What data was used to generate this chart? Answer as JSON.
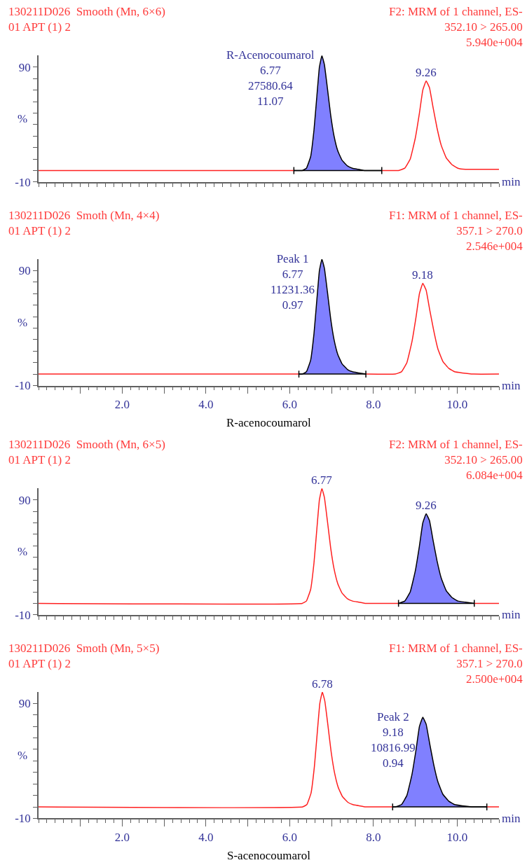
{
  "chart_data": [
    {
      "type": "line",
      "title": "130211D026  Smooth (Mn, 6×6)\n01 APT (1) 2",
      "subtitle": "F2: MRM of 1 channel, ES-\n352.10 > 265.00\n5.940e+004",
      "xlabel": "min",
      "ylabel": "%",
      "tick_labels": "y",
      "xlim": [
        0,
        11
      ],
      "ylim": [
        -10,
        100
      ],
      "xticks": [
        {
          "value": 1,
          "label": null
        },
        {
          "value": 2,
          "label": null
        },
        {
          "value": 3,
          "label": null
        },
        {
          "value": 4,
          "label": null
        },
        {
          "value": 5,
          "label": null
        },
        {
          "value": 6,
          "label": null
        },
        {
          "value": 7,
          "label": null
        },
        {
          "value": 8,
          "label": null
        },
        {
          "value": 9,
          "label": null
        },
        {
          "value": 10,
          "label": null
        }
      ],
      "yticks": [
        -10,
        {
          "value": 0,
          "label": null
        },
        {
          "value": 10,
          "label": null
        },
        {
          "value": 20,
          "label": null
        },
        {
          "value": 30,
          "label": null
        },
        {
          "value": 40,
          "label": null
        },
        {
          "value": 50,
          "label": null
        },
        {
          "value": 60,
          "label": null
        },
        {
          "value": 70,
          "label": null
        },
        {
          "value": 80,
          "label": null
        },
        90
      ],
      "series": [
        {
          "color": "#ff2020",
          "x": [
            0,
            6.1,
            7.0,
            8.2,
            8.6,
            8.75,
            8.88,
            9.0,
            9.1,
            9.18,
            9.26,
            9.34,
            9.42,
            9.52,
            9.62,
            9.74,
            9.88,
            10.02,
            10.2,
            10.4,
            11.0
          ],
          "values": [
            0,
            0,
            null,
            0,
            0,
            2,
            10,
            28,
            50,
            70,
            78,
            72,
            56,
            37,
            22,
            11,
            5,
            2,
            1,
            1,
            1
          ]
        },
        {
          "type": "area",
          "color": "#8080ff",
          "x": [
            6.1,
            6.3,
            6.4,
            6.5,
            6.58,
            6.65,
            6.71,
            6.77,
            6.83,
            6.9,
            6.98,
            7.06,
            7.15,
            7.25,
            7.38,
            7.5,
            7.65,
            7.8,
            8.2
          ],
          "values": [
            0,
            0,
            2,
            12,
            35,
            65,
            90,
            100,
            92,
            72,
            48,
            30,
            17,
            9,
            4,
            2,
            1,
            0,
            0
          ]
        }
      ],
      "annotations": [
        {
          "text": "R-Acenocoumarol\n6.77\n27580.64\n11.07",
          "x": 6.77,
          "y": 100
        },
        {
          "text": "9.26",
          "x": 9.26,
          "y": 78
        }
      ]
    },
    {
      "type": "line",
      "title": "130211D026  Smoth (Mn, 4×4)\n01 APT (1) 2",
      "subtitle": "F1: MRM of 1 channel, ES-\n357.1 > 270.0\n2.546e+004",
      "xlabel": "min",
      "ylabel": "%",
      "xlim": [
        0,
        11
      ],
      "ylim": [
        -10,
        100
      ],
      "xticks": [
        {
          "value": 1,
          "label": null
        },
        {
          "value": 2,
          "label": "2.0"
        },
        {
          "value": 3,
          "label": null
        },
        {
          "value": 4,
          "label": "4.0"
        },
        {
          "value": 5,
          "label": null
        },
        {
          "value": 6,
          "label": "6.0"
        },
        {
          "value": 7,
          "label": null
        },
        {
          "value": 8,
          "label": "8.0"
        },
        {
          "value": 9,
          "label": null
        },
        {
          "value": 10,
          "label": "10.0"
        }
      ],
      "yticks": [
        -10,
        {
          "value": 0,
          "label": null
        },
        {
          "value": 10,
          "label": null
        },
        {
          "value": 20,
          "label": null
        },
        {
          "value": 30,
          "label": null
        },
        {
          "value": 40,
          "label": null
        },
        {
          "value": 50,
          "label": null
        },
        {
          "value": 60,
          "label": null
        },
        {
          "value": 70,
          "label": null
        },
        {
          "value": 80,
          "label": null
        },
        90
      ],
      "series": [
        {
          "color": "#ff2020",
          "x": [
            0,
            6.22,
            7.0,
            7.82,
            8.52,
            8.67,
            8.8,
            8.92,
            9.02,
            9.1,
            9.18,
            9.26,
            9.34,
            9.44,
            9.54,
            9.66,
            9.8,
            9.94,
            10.12,
            10.4,
            11.0
          ],
          "values": [
            0,
            0,
            null,
            0,
            0,
            2,
            10,
            28,
            50,
            70,
            79,
            73,
            57,
            38,
            22,
            11,
            5,
            2,
            1,
            0,
            0
          ]
        },
        {
          "type": "area",
          "color": "#8080ff",
          "x": [
            6.22,
            6.3,
            6.4,
            6.5,
            6.58,
            6.65,
            6.71,
            6.77,
            6.83,
            6.9,
            6.98,
            7.06,
            7.15,
            7.25,
            7.38,
            7.5,
            7.65,
            7.82
          ],
          "values": [
            0,
            0,
            2,
            12,
            35,
            65,
            90,
            100,
            92,
            72,
            48,
            30,
            17,
            9,
            4,
            2,
            1,
            0
          ]
        }
      ],
      "annotations": [
        {
          "text": "Peak 1\n6.77\n11231.36\n0.97",
          "x": 6.77,
          "y": 100
        },
        {
          "text": "9.18",
          "x": 9.18,
          "y": 79
        },
        "R-acenocoumarol"
      ]
    },
    {
      "type": "line",
      "title": "130211D026  Smooth (Mn, 6×5)\n01 APT (1) 2",
      "subtitle": "F2: MRM of 1 channel, ES-\n352.10 > 265.00\n6.084e+004",
      "xlabel": "min",
      "ylabel": "%",
      "tick_labels": "y",
      "xlim": [
        0,
        11
      ],
      "ylim": [
        -10,
        100
      ],
      "xticks": [
        {
          "value": 1,
          "label": null
        },
        {
          "value": 2,
          "label": null
        },
        {
          "value": 3,
          "label": null
        },
        {
          "value": 4,
          "label": null
        },
        {
          "value": 5,
          "label": null
        },
        {
          "value": 6,
          "label": null
        },
        {
          "value": 7,
          "label": null
        },
        {
          "value": 8,
          "label": null
        },
        {
          "value": 9,
          "label": null
        },
        {
          "value": 10,
          "label": null
        }
      ],
      "yticks": [
        -10,
        {
          "value": 0,
          "label": null
        },
        {
          "value": 10,
          "label": null
        },
        {
          "value": 20,
          "label": null
        },
        {
          "value": 30,
          "label": null
        },
        {
          "value": 40,
          "label": null
        },
        {
          "value": 50,
          "label": null
        },
        {
          "value": 60,
          "label": null
        },
        {
          "value": 70,
          "label": null
        },
        {
          "value": 80,
          "label": null
        },
        90
      ],
      "series": [
        {
          "color": "#ff2020",
          "x": [
            0,
            6.3,
            6.4,
            6.5,
            6.58,
            6.65,
            6.71,
            6.77,
            6.83,
            6.9,
            6.98,
            7.06,
            7.15,
            7.25,
            7.38,
            7.5,
            7.65,
            7.8,
            8.2,
            8.6,
            9.5,
            10.41,
            11.0
          ],
          "values": [
            0,
            0,
            2,
            12,
            35,
            65,
            90,
            100,
            92,
            72,
            48,
            30,
            17,
            9,
            4,
            2,
            1,
            0,
            0,
            0,
            null,
            0,
            0
          ]
        },
        {
          "type": "area",
          "color": "#8080ff",
          "x": [
            8.6,
            8.75,
            8.88,
            9.0,
            9.1,
            9.18,
            9.26,
            9.34,
            9.42,
            9.52,
            9.62,
            9.74,
            9.88,
            10.02,
            10.2,
            10.41
          ],
          "values": [
            0,
            2,
            10,
            28,
            50,
            70,
            78,
            72,
            56,
            37,
            22,
            11,
            5,
            2,
            1,
            0
          ]
        }
      ],
      "annotations": [
        {
          "text": "6.77",
          "x": 6.77,
          "y": 100
        },
        {
          "text": "9.26",
          "x": 9.26,
          "y": 78
        }
      ]
    },
    {
      "type": "line",
      "title": "130211D026  Smoth (Mn, 5×5)\n01 APT (1) 2",
      "subtitle": "F1: MRM of 1 channel, ES-\n357.1 > 270.0\n2.500e+004",
      "xlabel": "min",
      "ylabel": "%",
      "xlim": [
        0,
        11
      ],
      "ylim": [
        -10,
        100
      ],
      "xticks": [
        {
          "value": 1,
          "label": null
        },
        {
          "value": 2,
          "label": "2.0"
        },
        {
          "value": 3,
          "label": null
        },
        {
          "value": 4,
          "label": "4.0"
        },
        {
          "value": 5,
          "label": null
        },
        {
          "value": 6,
          "label": "6.0"
        },
        {
          "value": 7,
          "label": null
        },
        {
          "value": 8,
          "label": "8.0"
        },
        {
          "value": 9,
          "label": null
        },
        {
          "value": 10,
          "label": "10.0"
        }
      ],
      "yticks": [
        -10,
        {
          "value": 0,
          "label": null
        },
        {
          "value": 10,
          "label": null
        },
        {
          "value": 20,
          "label": null
        },
        {
          "value": 30,
          "label": null
        },
        {
          "value": 40,
          "label": null
        },
        {
          "value": 50,
          "label": null
        },
        {
          "value": 60,
          "label": null
        },
        {
          "value": 70,
          "label": null
        },
        {
          "value": 80,
          "label": null
        },
        90
      ],
      "series": [
        {
          "color": "#ff2020",
          "x": [
            0,
            6.31,
            6.41,
            6.51,
            6.59,
            6.66,
            6.72,
            6.78,
            6.84,
            6.91,
            6.99,
            7.07,
            7.16,
            7.26,
            7.39,
            7.51,
            7.66,
            7.81,
            8.2,
            8.46,
            9.5,
            10.71,
            11.0
          ],
          "values": [
            0,
            0,
            2,
            12,
            35,
            65,
            90,
            100,
            92,
            72,
            48,
            30,
            17,
            9,
            4,
            2,
            1,
            0,
            0,
            0,
            null,
            0,
            0
          ]
        },
        {
          "type": "area",
          "color": "#8080ff",
          "x": [
            8.46,
            8.52,
            8.67,
            8.8,
            8.92,
            9.02,
            9.1,
            9.18,
            9.26,
            9.34,
            9.44,
            9.54,
            9.66,
            9.8,
            9.94,
            10.12,
            10.4,
            10.71
          ],
          "values": [
            0,
            0,
            2,
            10,
            28,
            50,
            70,
            78,
            72,
            56,
            37,
            22,
            11,
            5,
            2,
            1,
            0,
            0
          ]
        }
      ],
      "annotations": [
        {
          "text": "6.78",
          "x": 6.78,
          "y": 100
        },
        {
          "text": "Peak 2\n9.18\n10816.99\n0.94",
          "x": 9.18,
          "y": 78
        },
        "S-acenocoumarol"
      ]
    }
  ]
}
